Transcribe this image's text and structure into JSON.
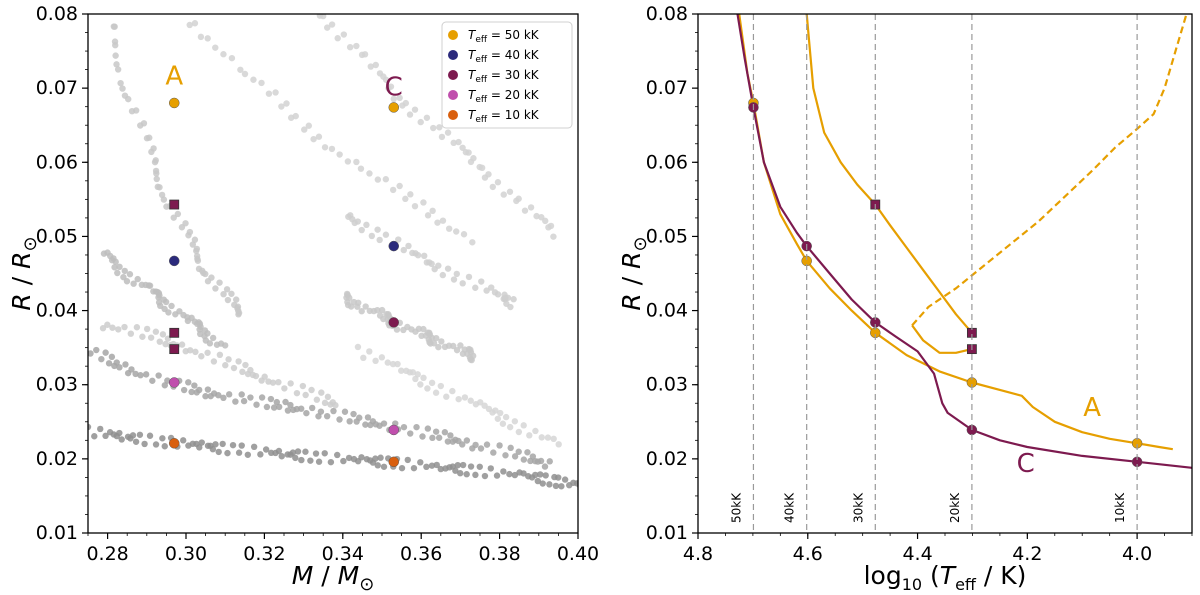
{
  "chart_data": [
    {
      "type": "scatter",
      "xlabel": "M / M⊙",
      "ylabel": "R / R⊙",
      "xlim": [
        0.275,
        0.4
      ],
      "ylim": [
        0.01,
        0.08
      ],
      "xticks": [
        "0.28",
        "0.30",
        "0.32",
        "0.34",
        "0.36",
        "0.38",
        "0.40"
      ],
      "yticks": [
        "0.01",
        "0.02",
        "0.03",
        "0.04",
        "0.05",
        "0.06",
        "0.07",
        "0.08"
      ],
      "legend_position": "top-right",
      "legend": [
        {
          "label": "T_eff = 50 kK",
          "color": "#e69f00"
        },
        {
          "label": "T_eff = 40 kK",
          "color": "#2b2a7c"
        },
        {
          "label": "T_eff = 30 kK",
          "color": "#7d1a4f"
        },
        {
          "label": "T_eff = 20 kK",
          "color": "#c04fad"
        },
        {
          "label": "T_eff = 10 kK",
          "color": "#d95f0e"
        }
      ],
      "model_labels": [
        {
          "text": "A",
          "x": 0.297,
          "y": 0.0705,
          "color": "#e69f00"
        },
        {
          "text": "C",
          "x": 0.353,
          "y": 0.069,
          "color": "#7d1a4f"
        }
      ],
      "highlight_points": [
        {
          "x": 0.297,
          "y": 0.068,
          "color": "#e69f00",
          "marker": "circle"
        },
        {
          "x": 0.297,
          "y": 0.0543,
          "color": "#7d1a4f",
          "marker": "square"
        },
        {
          "x": 0.297,
          "y": 0.0467,
          "color": "#2b2a7c",
          "marker": "circle"
        },
        {
          "x": 0.297,
          "y": 0.037,
          "color": "#7d1a4f",
          "marker": "square"
        },
        {
          "x": 0.297,
          "y": 0.0348,
          "color": "#7d1a4f",
          "marker": "square"
        },
        {
          "x": 0.297,
          "y": 0.0303,
          "color": "#c04fad",
          "marker": "circle"
        },
        {
          "x": 0.297,
          "y": 0.0221,
          "color": "#d95f0e",
          "marker": "circle"
        },
        {
          "x": 0.353,
          "y": 0.0674,
          "color": "#e69f00",
          "marker": "circle"
        },
        {
          "x": 0.353,
          "y": 0.0487,
          "color": "#2b2a7c",
          "marker": "circle"
        },
        {
          "x": 0.353,
          "y": 0.0384,
          "color": "#7d1a4f",
          "marker": "circle"
        },
        {
          "x": 0.353,
          "y": 0.0239,
          "color": "#c04fad",
          "marker": "circle"
        },
        {
          "x": 0.353,
          "y": 0.0196,
          "color": "#d95f0e",
          "marker": "circle"
        }
      ],
      "background_tracks": [
        {
          "color": "#8f8f8f",
          "points": [
            [
              0.275,
              0.0237
            ],
            [
              0.285,
              0.023
            ],
            [
              0.295,
              0.0223
            ],
            [
              0.305,
              0.0217
            ],
            [
              0.315,
              0.0212
            ],
            [
              0.325,
              0.0207
            ],
            [
              0.335,
              0.0202
            ],
            [
              0.345,
              0.0198
            ],
            [
              0.355,
              0.0194
            ],
            [
              0.365,
              0.0189
            ],
            [
              0.375,
              0.0184
            ],
            [
              0.385,
              0.0178
            ],
            [
              0.395,
              0.017
            ],
            [
              0.4,
              0.0165
            ]
          ]
        },
        {
          "color": "#a6a6a6",
          "points": [
            [
              0.275,
              0.0345
            ],
            [
              0.285,
              0.0322
            ],
            [
              0.295,
              0.0303
            ],
            [
              0.305,
              0.029
            ],
            [
              0.315,
              0.028
            ],
            [
              0.325,
              0.0271
            ],
            [
              0.335,
              0.0262
            ],
            [
              0.345,
              0.0252
            ],
            [
              0.355,
              0.0241
            ],
            [
              0.365,
              0.023
            ],
            [
              0.375,
              0.0218
            ],
            [
              0.385,
              0.0205
            ],
            [
              0.395,
              0.019
            ]
          ]
        },
        {
          "color": "#bdbdbd",
          "points": [
            [
              0.278,
              0.048
            ],
            [
              0.285,
              0.045
            ],
            [
              0.29,
              0.043
            ],
            [
              0.295,
              0.041
            ],
            [
              0.3,
              0.039
            ],
            [
              0.305,
              0.037
            ],
            [
              0.31,
              0.035
            ]
          ]
        },
        {
          "color": "#c8c8c8",
          "points": [
            [
              0.28,
              0.08
            ],
            [
              0.285,
              0.07
            ],
            [
              0.29,
              0.062
            ],
            [
              0.295,
              0.0555
            ],
            [
              0.3,
              0.05
            ],
            [
              0.305,
              0.0455
            ],
            [
              0.31,
              0.042
            ],
            [
              0.315,
              0.039
            ]
          ]
        },
        {
          "color": "#c8c8c8",
          "points": [
            [
              0.34,
              0.042
            ],
            [
              0.345,
              0.0405
            ],
            [
              0.35,
              0.0393
            ],
            [
              0.355,
              0.038
            ],
            [
              0.36,
              0.0368
            ],
            [
              0.365,
              0.0357
            ],
            [
              0.37,
              0.0346
            ],
            [
              0.375,
              0.0335
            ]
          ]
        },
        {
          "color": "#cfcfcf",
          "points": [
            [
              0.341,
              0.053
            ],
            [
              0.35,
              0.05
            ],
            [
              0.36,
              0.047
            ],
            [
              0.37,
              0.0445
            ],
            [
              0.38,
              0.042
            ],
            [
              0.385,
              0.0408
            ]
          ]
        },
        {
          "color": "#d2d2d2",
          "points": [
            [
              0.3,
              0.08
            ],
            [
              0.315,
              0.072
            ],
            [
              0.33,
              0.065
            ],
            [
              0.345,
              0.059
            ],
            [
              0.36,
              0.054
            ],
            [
              0.375,
              0.049
            ]
          ]
        },
        {
          "color": "#d2d2d2",
          "points": [
            [
              0.335,
              0.08
            ],
            [
              0.345,
              0.074
            ],
            [
              0.355,
              0.0685
            ],
            [
              0.365,
              0.064
            ],
            [
              0.375,
              0.0595
            ],
            [
              0.385,
              0.0545
            ],
            [
              0.395,
              0.05
            ]
          ]
        },
        {
          "color": "#cccccc",
          "points": [
            [
              0.28,
              0.038
            ],
            [
              0.29,
              0.0368
            ],
            [
              0.3,
              0.035
            ],
            [
              0.31,
              0.033
            ],
            [
              0.32,
              0.031
            ],
            [
              0.33,
              0.029
            ],
            [
              0.34,
              0.027
            ]
          ]
        },
        {
          "color": "#d6d6d6",
          "points": [
            [
              0.345,
              0.0345
            ],
            [
              0.355,
              0.032
            ],
            [
              0.365,
              0.0295
            ],
            [
              0.375,
              0.027
            ],
            [
              0.385,
              0.0245
            ],
            [
              0.395,
              0.022
            ]
          ]
        }
      ]
    },
    {
      "type": "line",
      "xlabel": "log10 (T_eff / K)",
      "ylabel": "R / R⊙",
      "xlim": [
        4.8,
        3.9
      ],
      "ylim": [
        0.01,
        0.08
      ],
      "xticks": [
        "4.8",
        "4.6",
        "4.4",
        "4.2",
        "4.0"
      ],
      "yticks": [
        "0.01",
        "0.02",
        "0.03",
        "0.04",
        "0.05",
        "0.06",
        "0.07",
        "0.08"
      ],
      "vlines": [
        {
          "x": 4.699,
          "label": "50kK"
        },
        {
          "x": 4.602,
          "label": "40kK"
        },
        {
          "x": 4.477,
          "label": "30kK"
        },
        {
          "x": 4.301,
          "label": "20kK"
        },
        {
          "x": 4.0,
          "label": "10kK"
        }
      ],
      "series": [
        {
          "name": "A",
          "color": "#e69f00",
          "style": "solid",
          "points": [
            [
              4.725,
              0.08
            ],
            [
              4.71,
              0.072
            ],
            [
              4.699,
              0.068
            ],
            [
              4.68,
              0.06
            ],
            [
              4.65,
              0.053
            ],
            [
              4.62,
              0.049
            ],
            [
              4.602,
              0.0467
            ],
            [
              4.56,
              0.043
            ],
            [
              4.52,
              0.04
            ],
            [
              4.477,
              0.037
            ],
            [
              4.42,
              0.034
            ],
            [
              4.36,
              0.0318
            ],
            [
              4.301,
              0.0303
            ],
            [
              4.25,
              0.0293
            ],
            [
              4.21,
              0.0285
            ],
            [
              4.19,
              0.027
            ],
            [
              4.15,
              0.025
            ],
            [
              4.1,
              0.0236
            ],
            [
              4.05,
              0.0227
            ],
            [
              4.0,
              0.0221
            ],
            [
              3.96,
              0.0216
            ],
            [
              3.935,
              0.0213
            ]
          ]
        },
        {
          "name": "A",
          "color": "#e69f00",
          "style": "solid",
          "points": [
            [
              4.602,
              0.08
            ],
            [
              4.59,
              0.07
            ],
            [
              4.57,
              0.064
            ],
            [
              4.54,
              0.06
            ],
            [
              4.51,
              0.057
            ],
            [
              4.477,
              0.0543
            ],
            [
              4.45,
              0.0515
            ],
            [
              4.42,
              0.0485
            ],
            [
              4.39,
              0.0455
            ],
            [
              4.36,
              0.0425
            ],
            [
              4.33,
              0.0395
            ],
            [
              4.301,
              0.037
            ]
          ]
        },
        {
          "name": "A",
          "color": "#e69f00",
          "style": "solid",
          "points": [
            [
              4.301,
              0.0348
            ],
            [
              4.33,
              0.0343
            ],
            [
              4.36,
              0.0343
            ],
            [
              4.39,
              0.036
            ],
            [
              4.41,
              0.038
            ]
          ]
        },
        {
          "name": "A",
          "color": "#e69f00",
          "style": "dashed",
          "points": [
            [
              4.41,
              0.038
            ],
            [
              4.38,
              0.0405
            ],
            [
              4.33,
              0.043
            ],
            [
              4.28,
              0.046
            ],
            [
              4.23,
              0.049
            ],
            [
              4.18,
              0.052
            ],
            [
              4.13,
              0.0555
            ],
            [
              4.08,
              0.059
            ],
            [
              4.04,
              0.062
            ],
            [
              4.0,
              0.0645
            ],
            [
              3.97,
              0.0665
            ],
            [
              3.95,
              0.07
            ],
            [
              3.93,
              0.075
            ],
            [
              3.91,
              0.08
            ]
          ]
        },
        {
          "name": "C",
          "color": "#7d1a4f",
          "style": "solid",
          "points": [
            [
              4.728,
              0.08
            ],
            [
              4.715,
              0.074
            ],
            [
              4.699,
              0.0674
            ],
            [
              4.68,
              0.06
            ],
            [
              4.65,
              0.054
            ],
            [
              4.62,
              0.0505
            ],
            [
              4.602,
              0.0487
            ],
            [
              4.56,
              0.045
            ],
            [
              4.52,
              0.0415
            ],
            [
              4.477,
              0.0384
            ],
            [
              4.44,
              0.0365
            ],
            [
              4.4,
              0.0345
            ],
            [
              4.37,
              0.0315
            ],
            [
              4.355,
              0.0275
            ],
            [
              4.345,
              0.0262
            ],
            [
              4.301,
              0.0239
            ],
            [
              4.25,
              0.0225
            ],
            [
              4.2,
              0.0216
            ],
            [
              4.1,
              0.0204
            ],
            [
              4.0,
              0.0196
            ],
            [
              3.95,
              0.0192
            ],
            [
              3.9,
              0.0188
            ]
          ]
        }
      ],
      "track_labels": [
        {
          "text": "A",
          "x": 4.082,
          "y": 0.0258,
          "color": "#e69f00"
        },
        {
          "text": "C",
          "x": 4.203,
          "y": 0.0182,
          "color": "#7d1a4f"
        }
      ],
      "highlight_points": [
        {
          "x": 4.699,
          "y": 0.068,
          "color": "#e69f00",
          "marker": "circle"
        },
        {
          "x": 4.699,
          "y": 0.0674,
          "color": "#7d1a4f",
          "marker": "circle"
        },
        {
          "x": 4.602,
          "y": 0.0467,
          "color": "#e69f00",
          "marker": "circle"
        },
        {
          "x": 4.602,
          "y": 0.0487,
          "color": "#7d1a4f",
          "marker": "circle"
        },
        {
          "x": 4.477,
          "y": 0.0543,
          "color": "#7d1a4f",
          "marker": "square"
        },
        {
          "x": 4.477,
          "y": 0.037,
          "color": "#e69f00",
          "marker": "circle"
        },
        {
          "x": 4.477,
          "y": 0.0384,
          "color": "#7d1a4f",
          "marker": "circle"
        },
        {
          "x": 4.301,
          "y": 0.037,
          "color": "#7d1a4f",
          "marker": "square"
        },
        {
          "x": 4.301,
          "y": 0.0348,
          "color": "#7d1a4f",
          "marker": "square"
        },
        {
          "x": 4.301,
          "y": 0.0303,
          "color": "#e69f00",
          "marker": "circle"
        },
        {
          "x": 4.301,
          "y": 0.0239,
          "color": "#7d1a4f",
          "marker": "circle"
        },
        {
          "x": 4.0,
          "y": 0.0221,
          "color": "#e69f00",
          "marker": "circle"
        },
        {
          "x": 4.0,
          "y": 0.0196,
          "color": "#7d1a4f",
          "marker": "circle"
        }
      ]
    }
  ]
}
